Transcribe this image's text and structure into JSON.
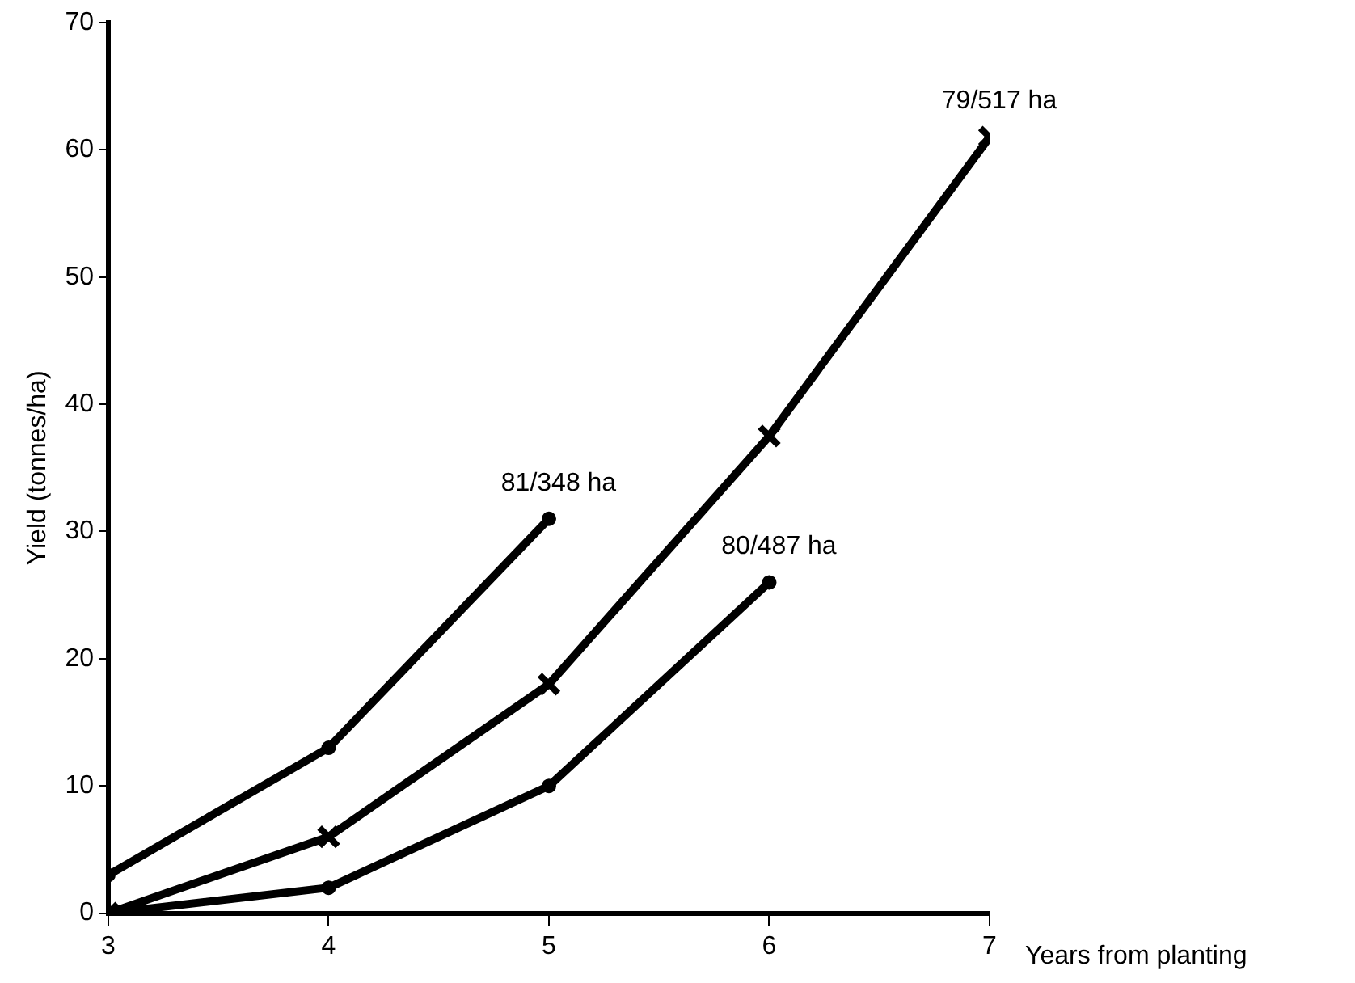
{
  "chart_data": {
    "type": "line",
    "xlabel": "Years from planting",
    "ylabel": "Yield (tonnes/ha)",
    "xlim": [
      3,
      7
    ],
    "xticks": [
      3,
      4,
      5,
      6,
      7
    ],
    "ylim": [
      0,
      70
    ],
    "yticks": [
      0,
      10,
      20,
      30,
      40,
      50,
      60,
      70
    ],
    "grid": false,
    "legend": false,
    "line_style": "solid",
    "series": [
      {
        "name": "81/348 ha",
        "color": "#000000",
        "marker": "circle",
        "x": [
          3,
          4,
          5
        ],
        "values": [
          3,
          13,
          31
        ]
      },
      {
        "name": "79/517 ha",
        "color": "#000000",
        "marker": "cross",
        "x": [
          3,
          4,
          5,
          6,
          7
        ],
        "values": [
          0,
          6,
          18,
          37.5,
          61
        ]
      },
      {
        "name": "80/487 ha",
        "color": "#000000",
        "marker": "circle",
        "x": [
          3,
          4,
          5,
          6
        ],
        "values": [
          0,
          2,
          10,
          26
        ]
      }
    ]
  }
}
